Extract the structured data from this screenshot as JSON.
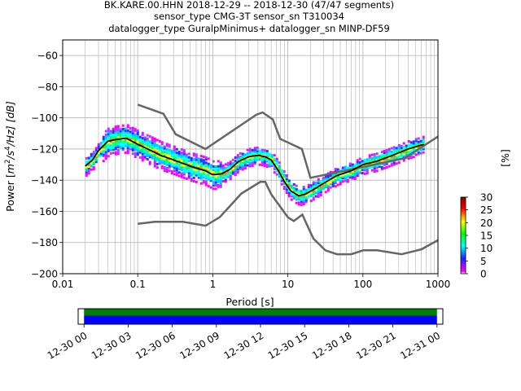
{
  "chart_data": {
    "type": "heatmap",
    "title_lines": [
      "BK.KARE.00.HHN   2018-12-29 -- 2018-12-30  (47/47 segments)",
      "sensor_type CMG-3T sensor_sn T310034",
      "datalogger_type GuralpMinimus+ datalogger_sn MINP-DF59"
    ],
    "xlabel": "Period [s]",
    "ylabel_parts": {
      "pre": "Power [",
      "m": "m",
      "sq": "2",
      "mid": "/s",
      "four": "4",
      "post": "/Hz] [dB]"
    },
    "x_scale": "log",
    "xlim": [
      0.01,
      1000
    ],
    "ylim": [
      -200,
      -50
    ],
    "x_ticks": [
      {
        "value": 0.01,
        "label": "0.01"
      },
      {
        "value": 0.1,
        "label": "0.1"
      },
      {
        "value": 1,
        "label": "1"
      },
      {
        "value": 10,
        "label": "10"
      },
      {
        "value": 100,
        "label": "100"
      },
      {
        "value": 1000,
        "label": "1000"
      }
    ],
    "y_ticks": [
      {
        "value": -60,
        "label": "−60"
      },
      {
        "value": -80,
        "label": "−80"
      },
      {
        "value": -100,
        "label": "−100"
      },
      {
        "value": -120,
        "label": "−120"
      },
      {
        "value": -140,
        "label": "−140"
      },
      {
        "value": -160,
        "label": "−160"
      },
      {
        "value": -180,
        "label": "−180"
      },
      {
        "value": -200,
        "label": "−200"
      }
    ],
    "grid_x_minor": true,
    "colorbar": {
      "label": "[%]",
      "range": [
        0,
        30
      ],
      "ticks": [
        {
          "value": 0,
          "label": "0"
        },
        {
          "value": 5,
          "label": "5"
        },
        {
          "value": 10,
          "label": "10"
        },
        {
          "value": 15,
          "label": "15"
        },
        {
          "value": 20,
          "label": "20"
        },
        {
          "value": 25,
          "label": "25"
        },
        {
          "value": 30,
          "label": "30"
        }
      ],
      "colors": [
        "#ffffff",
        "#ff00ff",
        "#0000ff",
        "#00ffff",
        "#00ff00",
        "#ffff00",
        "#ff0000",
        "#7f0000"
      ]
    },
    "nhnm": {
      "periods": [
        0.1,
        0.22,
        0.32,
        0.8,
        3.8,
        4.6,
        6.3,
        7.9,
        15.4,
        20,
        354.8,
        1000
      ],
      "values": [
        -91.5,
        -97.4,
        -110.5,
        -120.0,
        -98.0,
        -96.5,
        -101.0,
        -113.5,
        -120.0,
        -138.5,
        -126.0,
        -112.0
      ]
    },
    "nlnm": {
      "periods": [
        0.1,
        0.17,
        0.4,
        0.8,
        1.24,
        2.4,
        4.3,
        5.0,
        6.0,
        10.0,
        12.0,
        15.6,
        21.9,
        31.6,
        45.0,
        70.0,
        101.0,
        154.0,
        328.0,
        600.0,
        1000.0
      ],
      "values": [
        -168.0,
        -166.7,
        -166.7,
        -169.2,
        -163.7,
        -148.6,
        -141.1,
        -141.1,
        -149.0,
        -163.8,
        -166.2,
        -162.1,
        -177.5,
        -185.0,
        -187.5,
        -187.5,
        -185.0,
        -185.0,
        -187.5,
        -184.4,
        -178.5
      ]
    },
    "mode_curve": {
      "periods": [
        0.02,
        0.025,
        0.03,
        0.04,
        0.05,
        0.07,
        0.1,
        0.15,
        0.2,
        0.3,
        0.5,
        0.8,
        1.0,
        1.3,
        1.7,
        2.2,
        3.0,
        4.0,
        5.0,
        6.0,
        7.5,
        9.0,
        11.0,
        14.0,
        17.0,
        22.0,
        30.0,
        45.0,
        70.0,
        100.0,
        150.0,
        250.0,
        400.0,
        650.0
      ],
      "values": [
        -131,
        -127,
        -121,
        -115,
        -114,
        -113,
        -117,
        -121,
        -124,
        -127,
        -131,
        -134,
        -136.5,
        -136,
        -133,
        -128,
        -125,
        -124,
        -125,
        -127,
        -134,
        -141,
        -147,
        -150,
        -149,
        -146,
        -142,
        -137,
        -134,
        -130,
        -128,
        -124,
        -120,
        -117
      ]
    },
    "percentile_spread_db": 4,
    "date_axis": {
      "tick_labels": [
        "12-30 00",
        "12-30 03",
        "12-30 06",
        "12-30 09",
        "12-30 12",
        "12-30 15",
        "12-30 18",
        "12-30 21",
        "12-31 00"
      ],
      "span_hours": [
        -0.4,
        24.4
      ],
      "data_start_hours": 0,
      "data_end_hours": 24,
      "bar_colors": [
        "#008000",
        "#0000ff"
      ]
    }
  }
}
